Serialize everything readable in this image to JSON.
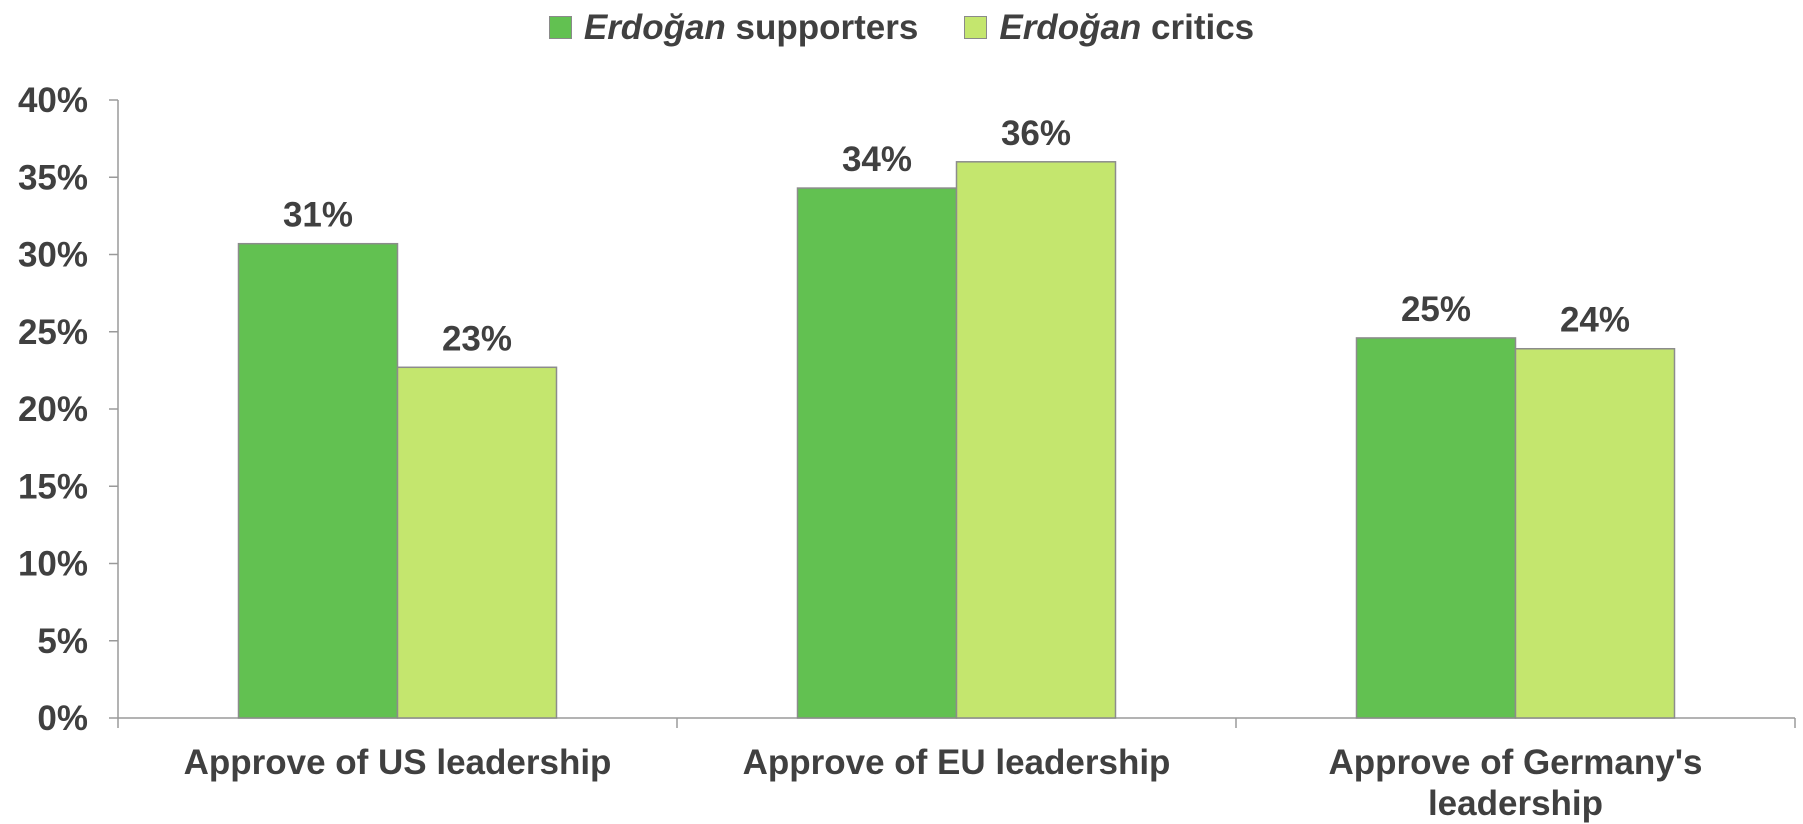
{
  "legend": [
    {
      "italic": "Erdoğan",
      "rest": " supporters",
      "color": "#62c151"
    },
    {
      "italic": "Erdoğan",
      "rest": " critics",
      "color": "#c4e66e"
    }
  ],
  "chart_data": {
    "type": "bar",
    "categories": [
      [
        "Approve of US leadership"
      ],
      [
        "Approve of EU leadership"
      ],
      [
        "Approve of Germany's",
        "leadership"
      ]
    ],
    "series": [
      {
        "name": "Erdoğan supporters",
        "values": [
          30.7,
          34.3,
          24.6
        ],
        "labels": [
          "31%",
          "34%",
          "25%"
        ],
        "color": "#62c151"
      },
      {
        "name": "Erdoğan critics",
        "values": [
          22.7,
          36.0,
          23.9
        ],
        "labels": [
          "23%",
          "36%",
          "24%"
        ],
        "color": "#c4e66e"
      }
    ],
    "yticks": [
      "0%",
      "5%",
      "10%",
      "15%",
      "20%",
      "25%",
      "30%",
      "35%",
      "40%"
    ],
    "ylim": [
      0,
      40
    ],
    "grid": false,
    "legend_position": "top"
  }
}
